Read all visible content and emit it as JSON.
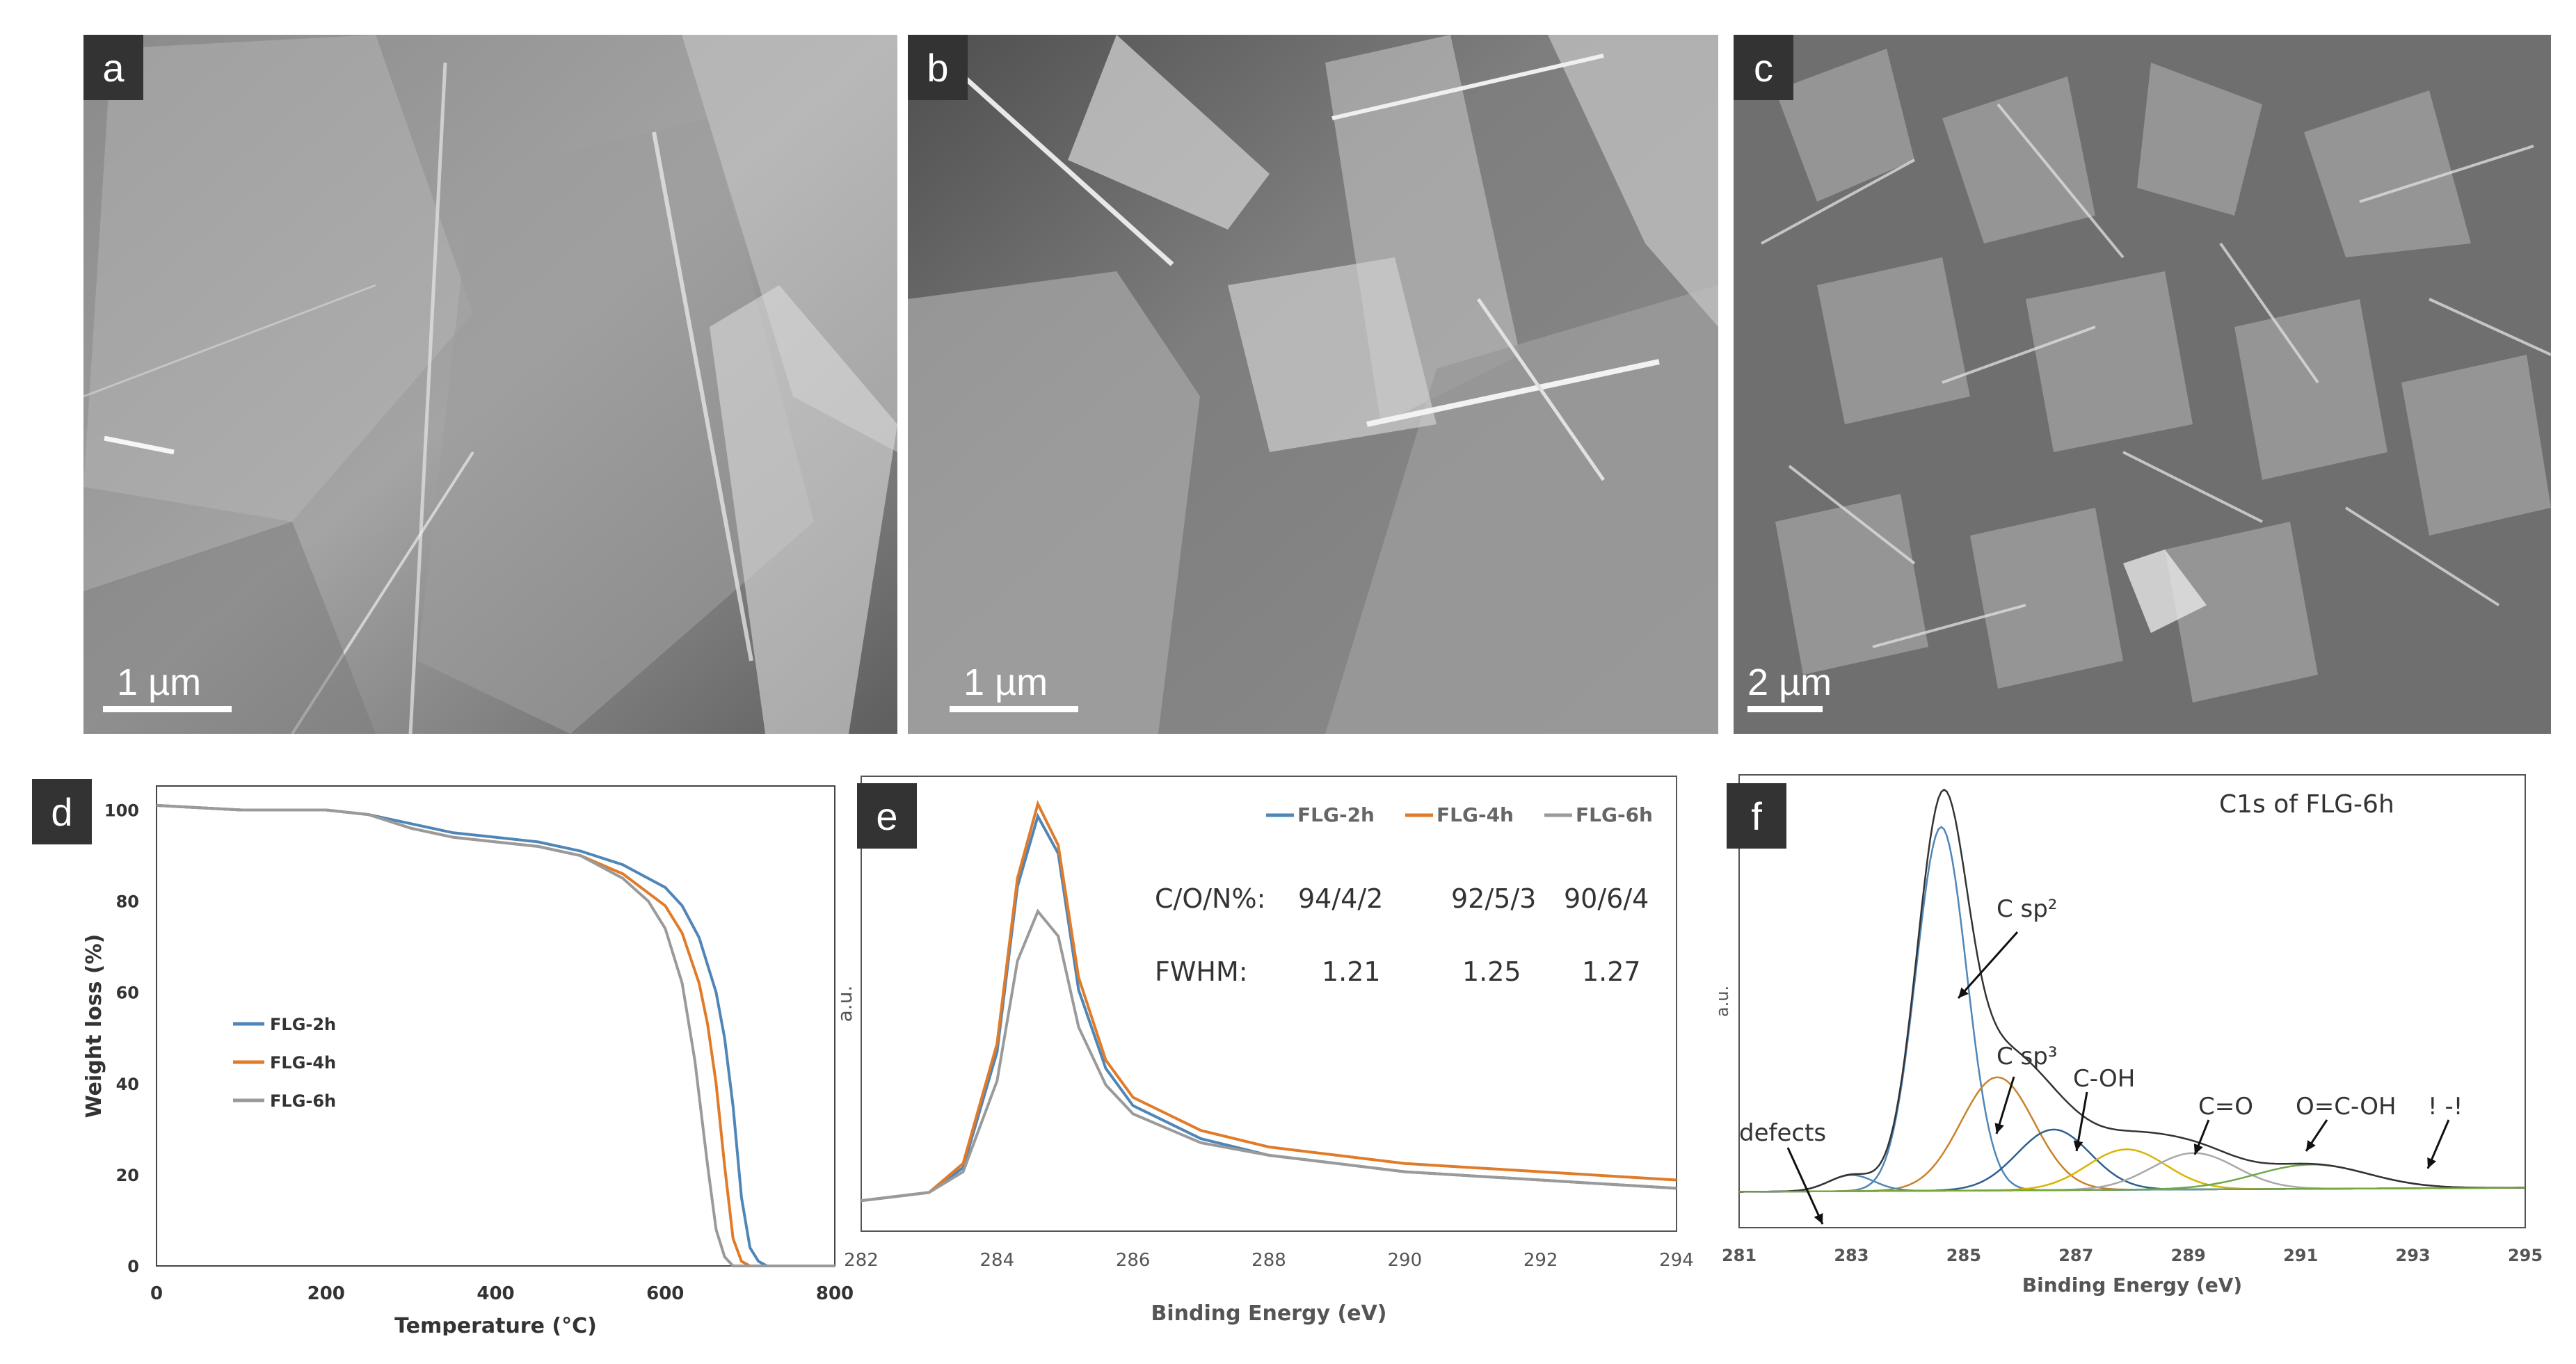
{
  "panels": {
    "a": {
      "label": "a",
      "scale": "1 µm"
    },
    "b": {
      "label": "b",
      "scale": "1 µm"
    },
    "c": {
      "label": "c",
      "scale": "2 µm"
    },
    "d": {
      "label": "d"
    },
    "e": {
      "label": "e"
    },
    "f": {
      "label": "f"
    }
  },
  "colors": {
    "flg2h": "#4f86b8",
    "flg4h": "#e07b2a",
    "flg6h": "#9a9a9a",
    "envelope": "#333333",
    "c_sp3": "#c9822b",
    "c_oh": "#2f5f8f",
    "c_o": "#d9b400",
    "ocoh": "#a8a8a8",
    "pipi": "#6fa84a",
    "defects": "#4f86b8"
  },
  "chart_data": [
    {
      "type": "line",
      "panel": "d",
      "xlabel": "Temperature (°C)",
      "ylabel": "Weight loss (%)",
      "xlim": [
        0,
        800
      ],
      "ylim": [
        0,
        100
      ],
      "xticks": [
        "0",
        "200",
        "400",
        "600",
        "800"
      ],
      "yticks": [
        "0",
        "20",
        "40",
        "60",
        "80",
        "100"
      ],
      "legend_position": "left-middle",
      "series": [
        {
          "name": "FLG-2h",
          "x": [
            0,
            100,
            200,
            250,
            300,
            350,
            400,
            450,
            500,
            550,
            600,
            620,
            640,
            660,
            670,
            680,
            690,
            700,
            710,
            720,
            800
          ],
          "y": [
            101,
            100,
            100,
            99,
            97,
            95,
            94,
            93,
            91,
            88,
            83,
            79,
            72,
            60,
            50,
            35,
            15,
            4,
            1,
            0,
            0
          ]
        },
        {
          "name": "FLG-4h",
          "x": [
            0,
            100,
            200,
            250,
            300,
            350,
            400,
            450,
            500,
            550,
            600,
            620,
            640,
            650,
            660,
            670,
            680,
            690,
            700,
            800
          ],
          "y": [
            101,
            100,
            100,
            99,
            96,
            94,
            93,
            92,
            90,
            86,
            79,
            73,
            62,
            53,
            40,
            22,
            6,
            1,
            0,
            0
          ]
        },
        {
          "name": "FLG-6h",
          "x": [
            0,
            100,
            200,
            250,
            300,
            350,
            400,
            450,
            500,
            550,
            580,
            600,
            620,
            635,
            650,
            660,
            670,
            680,
            800
          ],
          "y": [
            101,
            100,
            100,
            99,
            96,
            94,
            93,
            92,
            90,
            85,
            80,
            74,
            62,
            45,
            22,
            8,
            2,
            0,
            0
          ]
        }
      ]
    },
    {
      "type": "line",
      "panel": "e",
      "xlabel": "Binding Energy (eV)",
      "ylabel": "a.u.",
      "xlim": [
        282,
        294
      ],
      "xticks": [
        "282",
        "284",
        "286",
        "288",
        "290",
        "292",
        "294"
      ],
      "legend_position": "top-right",
      "table": {
        "row1_label": "C/O/N%:",
        "row1": [
          "94/4/2",
          "92/5/3",
          "90/6/4"
        ],
        "row2_label": "FWHM:",
        "row2": [
          "1.21",
          "1.25",
          "1.27"
        ]
      },
      "series": [
        {
          "name": "FLG-2h",
          "x": [
            282,
            283,
            283.5,
            284,
            284.3,
            284.6,
            284.9,
            285.2,
            285.6,
            286,
            287,
            288,
            289,
            290,
            291,
            292,
            293,
            294
          ],
          "y": [
            4,
            6,
            12,
            40,
            80,
            97,
            88,
            55,
            36,
            27,
            19,
            15,
            13,
            11,
            10,
            9,
            8,
            7
          ]
        },
        {
          "name": "FLG-4h",
          "x": [
            282,
            283,
            283.5,
            284,
            284.3,
            284.6,
            284.9,
            285.2,
            285.6,
            286,
            287,
            288,
            289,
            290,
            291,
            292,
            293,
            294
          ],
          "y": [
            4,
            6,
            13,
            42,
            82,
            100,
            90,
            58,
            38,
            29,
            21,
            17,
            15,
            13,
            12,
            11,
            10,
            9
          ]
        },
        {
          "name": "FLG-6h",
          "x": [
            282,
            283,
            283.5,
            284,
            284.3,
            284.6,
            284.9,
            285.2,
            285.6,
            286,
            287,
            288,
            289,
            290,
            291,
            292,
            293,
            294
          ],
          "y": [
            4,
            6,
            11,
            33,
            62,
            74,
            68,
            46,
            32,
            25,
            18,
            15,
            13,
            11,
            10,
            9,
            8,
            7
          ]
        }
      ]
    },
    {
      "type": "line",
      "panel": "f",
      "title": "C1s of FLG-6h",
      "xlabel": "Binding Energy (eV)",
      "ylabel": "a.u.",
      "xlim": [
        281,
        295
      ],
      "xticks": [
        "281",
        "283",
        "285",
        "287",
        "289",
        "291",
        "293",
        "295"
      ],
      "components": [
        {
          "name": "C sp²",
          "center": 284.6,
          "amplitude": 90,
          "width": 0.45
        },
        {
          "name": "C sp³",
          "center": 285.6,
          "amplitude": 28,
          "width": 0.65
        },
        {
          "name": "C-OH",
          "center": 286.6,
          "amplitude": 15,
          "width": 0.65
        },
        {
          "name": "C=O",
          "center": 287.9,
          "amplitude": 10,
          "width": 0.7
        },
        {
          "name": "O=C-OH",
          "center": 289.1,
          "amplitude": 9,
          "width": 0.75
        },
        {
          "name": "π-π",
          "center": 291.2,
          "amplitude": 6,
          "width": 1.0
        },
        {
          "name": "defects",
          "center": 283.0,
          "amplitude": 4,
          "width": 0.4
        }
      ],
      "annotations": [
        "C sp²",
        "C sp³",
        "C-OH",
        "C=O",
        "O=C-OH",
        "! -!",
        "defects"
      ]
    }
  ]
}
